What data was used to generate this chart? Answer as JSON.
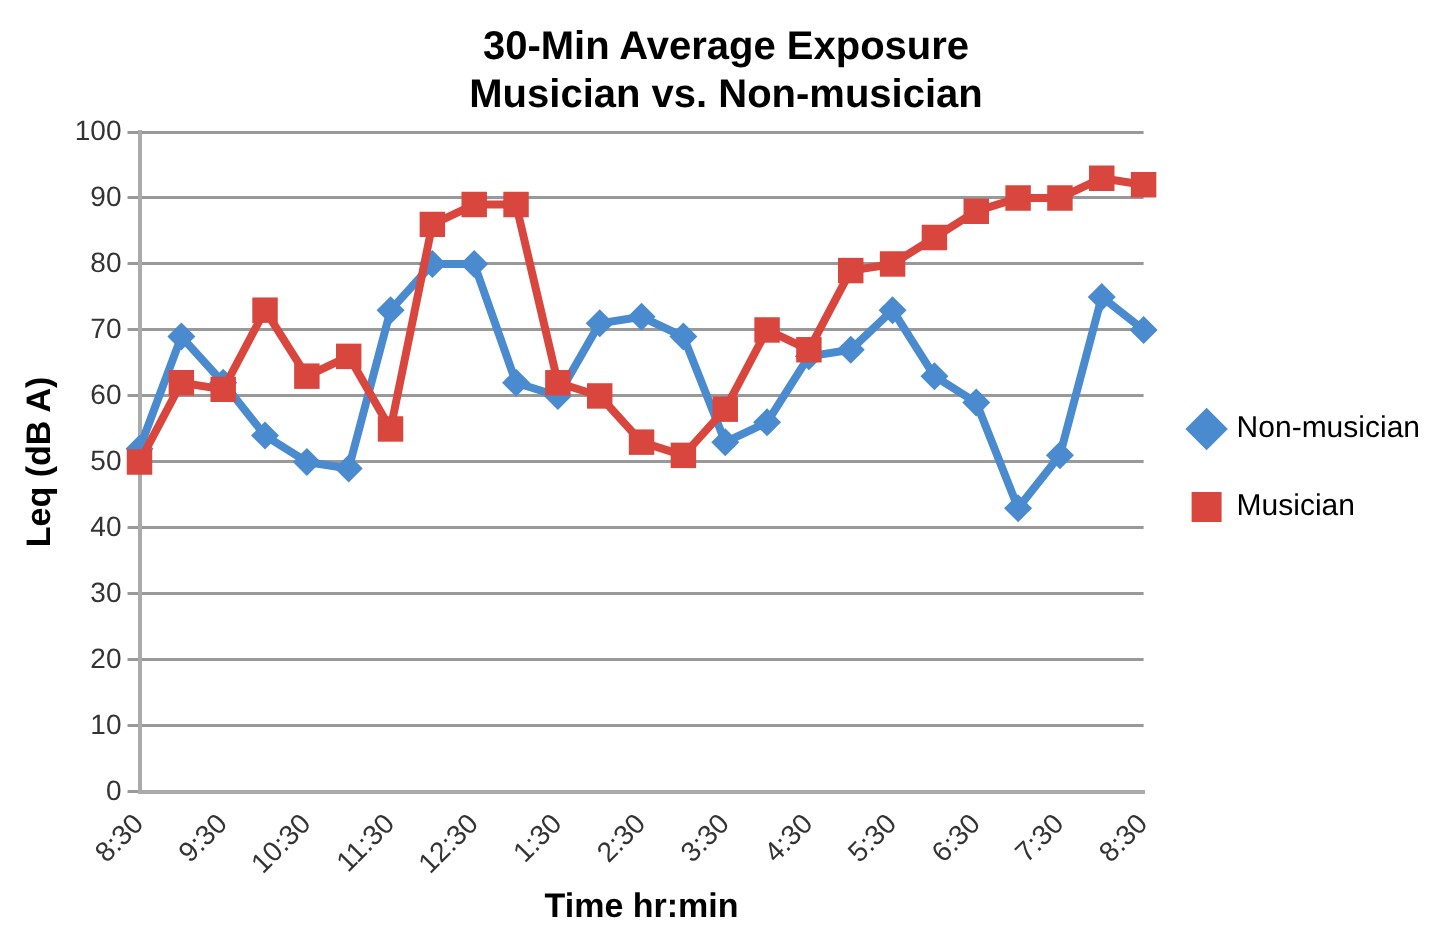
{
  "chart_data": {
    "type": "line",
    "title": "30-Min Average Exposure\nMusician vs. Non-musician",
    "xlabel": "Time hr:min",
    "ylabel": "Leq (dB A)",
    "categories": [
      "8:30",
      null,
      "9:30",
      null,
      "10:30",
      null,
      "11:30",
      null,
      "12:30",
      null,
      "1:30",
      null,
      "2:30",
      null,
      "3:30",
      null,
      "4:30",
      null,
      "5:30",
      null,
      "6:30",
      null,
      "7:30",
      null,
      "8:30"
    ],
    "series": [
      {
        "name": "Non-musician",
        "color": "#4a8bd0",
        "marker": "diamond",
        "values": [
          52,
          69,
          62,
          54,
          50,
          49,
          73,
          80,
          80,
          62,
          60,
          71,
          72,
          69,
          53,
          56,
          66,
          67,
          73,
          63,
          59,
          43,
          51,
          75,
          70
        ]
      },
      {
        "name": "Musician",
        "color": "#d9463e",
        "marker": "square",
        "values": [
          50,
          62,
          61,
          73,
          63,
          66,
          55,
          86,
          89,
          89,
          62,
          60,
          53,
          51,
          58,
          70,
          67,
          79,
          80,
          84,
          88,
          90,
          90,
          93,
          92
        ]
      }
    ],
    "ylim": [
      0,
      100
    ],
    "yticks": [
      0,
      10,
      20,
      30,
      40,
      50,
      60,
      70,
      80,
      90,
      100
    ],
    "grid": "y",
    "legend": "right"
  }
}
